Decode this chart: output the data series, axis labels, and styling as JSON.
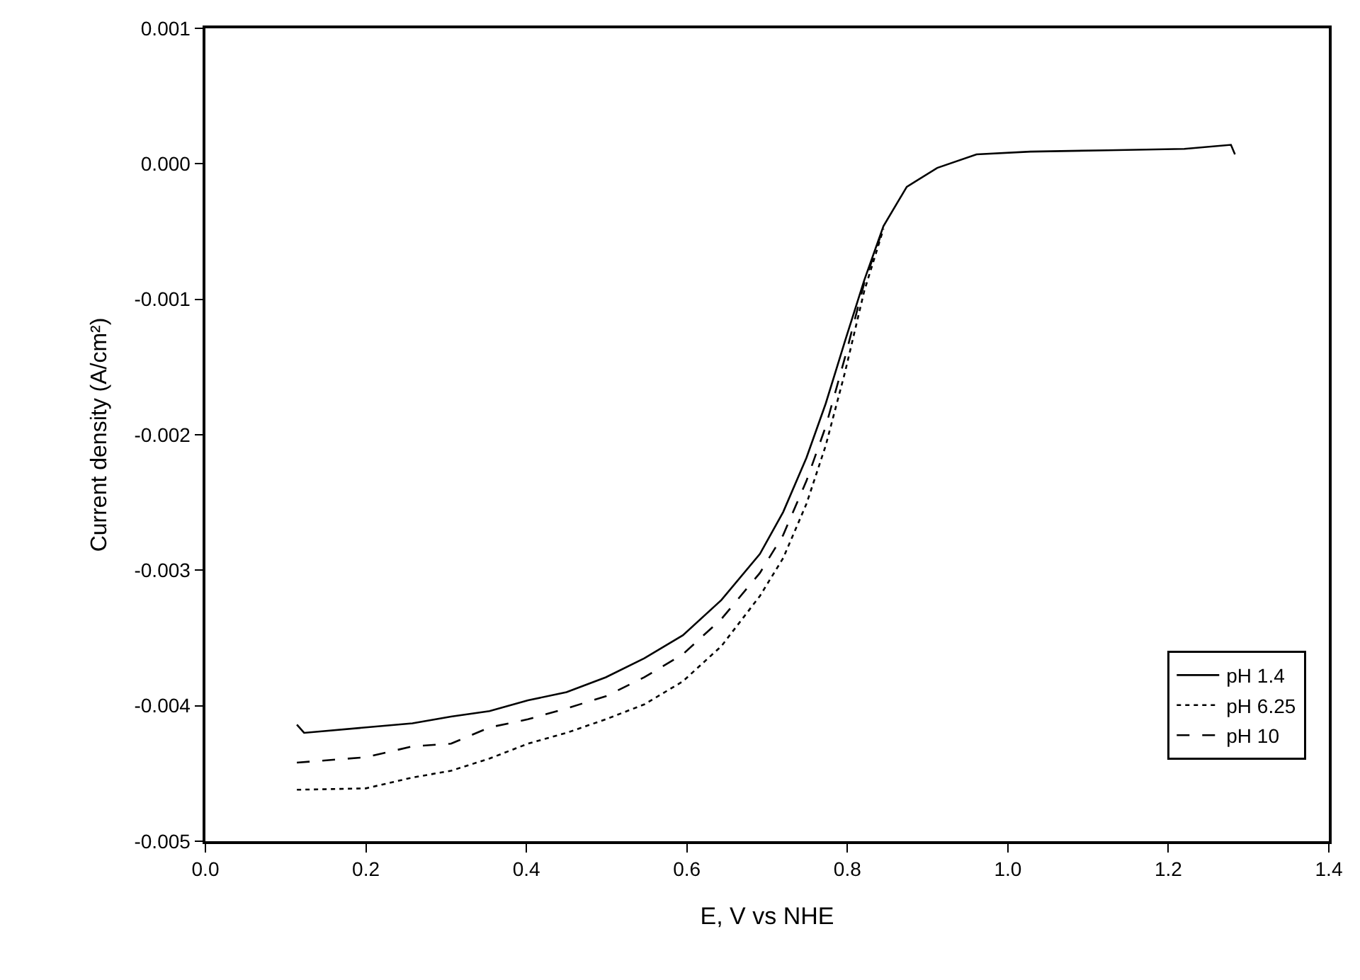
{
  "chart_data": {
    "type": "line",
    "xlabel": "E, V vs NHE",
    "ylabel": "Current density (A/cm²)",
    "xlim": [
      0,
      1.4
    ],
    "ylim": [
      -0.005,
      0.001
    ],
    "xticks": [
      {
        "value": 0,
        "label": "0.0"
      },
      {
        "value": 0.2,
        "label": "0.2"
      },
      {
        "value": 0.4,
        "label": "0.4"
      },
      {
        "value": 0.6,
        "label": "0.6"
      },
      {
        "value": 0.8,
        "label": "0.8"
      },
      {
        "value": 1.0,
        "label": "1.0"
      },
      {
        "value": 1.2,
        "label": "1.2"
      },
      {
        "value": 1.4,
        "label": "1.4"
      }
    ],
    "yticks": [
      {
        "value": -0.005,
        "label": "-0.005"
      },
      {
        "value": -0.004,
        "label": "-0.004"
      },
      {
        "value": -0.003,
        "label": "-0.003"
      },
      {
        "value": -0.002,
        "label": "-0.002"
      },
      {
        "value": -0.001,
        "label": "-0.001"
      },
      {
        "value": 0,
        "label": "0.000"
      },
      {
        "value": 0.001,
        "label": "0.001"
      }
    ],
    "grid": false,
    "legend": "bottom right",
    "marker": "none",
    "series": [
      {
        "name": "pH 1.4",
        "color": "#000000",
        "line_style": "solid",
        "x": [
          0.114,
          0.123,
          0.2,
          0.258,
          0.306,
          0.354,
          0.402,
          0.45,
          0.499,
          0.547,
          0.595,
          0.643,
          0.691,
          0.72,
          0.749,
          0.773,
          0.797,
          0.821,
          0.845,
          0.874,
          0.912,
          0.961,
          1.028,
          1.124,
          1.22,
          1.278,
          1.283
        ],
        "values": [
          -0.00414,
          -0.0042,
          -0.00416,
          -0.00413,
          -0.00408,
          -0.00404,
          -0.00396,
          -0.0039,
          -0.00379,
          -0.00365,
          -0.00348,
          -0.00322,
          -0.00288,
          -0.00257,
          -0.00217,
          -0.00177,
          -0.00131,
          -0.00086,
          -0.00046,
          -0.00017,
          -3e-05,
          7e-05,
          9e-05,
          0.0001,
          0.00011,
          0.00014,
          7e-05
        ]
      },
      {
        "name": "pH 6.25",
        "color": "#000000",
        "line_style": "dotted",
        "x": [
          0.114,
          0.2,
          0.258,
          0.306,
          0.354,
          0.402,
          0.45,
          0.499,
          0.547,
          0.595,
          0.643,
          0.691,
          0.72,
          0.749,
          0.773,
          0.797,
          0.821,
          0.845
        ],
        "values": [
          -0.00462,
          -0.00461,
          -0.00453,
          -0.00448,
          -0.00439,
          -0.00428,
          -0.0042,
          -0.0041,
          -0.00399,
          -0.00382,
          -0.00356,
          -0.00319,
          -0.00291,
          -0.00251,
          -0.00208,
          -0.00154,
          -0.00094,
          -0.00048
        ]
      },
      {
        "name": "pH 10",
        "color": "#000000",
        "line_style": "dashed",
        "x": [
          0.114,
          0.2,
          0.258,
          0.306,
          0.354,
          0.402,
          0.45,
          0.499,
          0.547,
          0.595,
          0.643,
          0.691,
          0.72,
          0.749,
          0.773,
          0.797,
          0.821,
          0.845
        ],
        "values": [
          -0.00442,
          -0.00438,
          -0.0043,
          -0.00428,
          -0.00416,
          -0.0041,
          -0.00402,
          -0.00393,
          -0.00379,
          -0.00362,
          -0.00336,
          -0.00302,
          -0.00274,
          -0.00234,
          -0.00194,
          -0.00143,
          -0.00088,
          -0.00047
        ]
      }
    ]
  }
}
